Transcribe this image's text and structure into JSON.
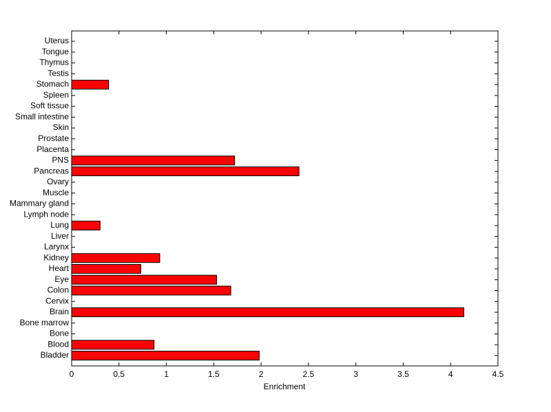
{
  "chart_data": {
    "type": "barh",
    "xlabel": "Enrichment",
    "categories": [
      "Bladder",
      "Blood",
      "Bone",
      "Bone marrow",
      "Brain",
      "Cervix",
      "Colon",
      "Eye",
      "Heart",
      "Kidney",
      "Larynx",
      "Liver",
      "Lung",
      "Lymph node",
      "Mammary gland",
      "Muscle",
      "Ovary",
      "Pancreas",
      "PNS",
      "Placenta",
      "Prostate",
      "Skin",
      "Small intestine",
      "Soft tissue",
      "Spleen",
      "Stomach",
      "Testis",
      "Thymus",
      "Tongue",
      "Uterus"
    ],
    "values": [
      1.98,
      0.87,
      0,
      0,
      4.14,
      0,
      1.68,
      1.53,
      0.73,
      0.93,
      0,
      0,
      0.3,
      0,
      0,
      0,
      0,
      2.4,
      1.72,
      0,
      0,
      0,
      0,
      0,
      0,
      0.39,
      0,
      0,
      0,
      0
    ],
    "color": "#ff0000",
    "xlim": [
      0,
      4.5
    ],
    "xticks": [
      0,
      0.5,
      1,
      1.5,
      2,
      2.5,
      3,
      3.5,
      4,
      4.5
    ]
  }
}
